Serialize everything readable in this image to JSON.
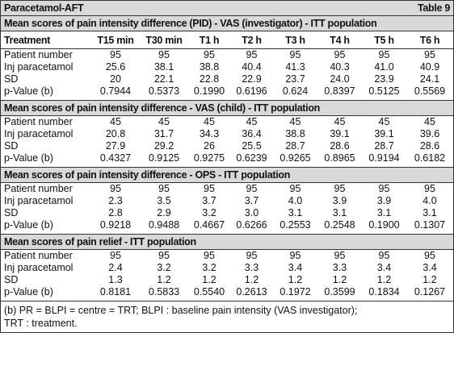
{
  "header": {
    "title": "Paracetamol-AFT",
    "table_label": "Table 9"
  },
  "columns": [
    "Treatment",
    "T15 min",
    "T30 min",
    "T1 h",
    "T2 h",
    "T3 h",
    "T4 h",
    "T5 h",
    "T6 h"
  ],
  "sections": [
    {
      "title": "Mean scores of pain intensity difference (PID) - VAS (investigator) - ITT population",
      "rows": [
        {
          "label": "Patient number",
          "values": [
            "95",
            "95",
            "95",
            "95",
            "95",
            "95",
            "95",
            "95"
          ]
        },
        {
          "label": "Inj paracetamol",
          "values": [
            "25.6",
            "38.1",
            "38.8",
            "40.4",
            "41.3",
            "40.3",
            "41.0",
            "40.9"
          ]
        },
        {
          "label": "SD",
          "values": [
            "20",
            "22.1",
            "22.8",
            "22.9",
            "23.7",
            "24.0",
            "23.9",
            "24.1"
          ]
        },
        {
          "label": "p-Value (b)",
          "values": [
            "0.7944",
            "0.5373",
            "0.1990",
            "0.6196",
            "0.624",
            "0.8397",
            "0.5125",
            "0.5569"
          ]
        }
      ]
    },
    {
      "title": "Mean scores of pain intensity difference - VAS (child) - ITT population",
      "rows": [
        {
          "label": "Patient number",
          "values": [
            "45",
            "45",
            "45",
            "45",
            "45",
            "45",
            "45",
            "45"
          ]
        },
        {
          "label": "Inj paracetamol",
          "values": [
            "20.8",
            "31.7",
            "34.3",
            "36.4",
            "38.8",
            "39.1",
            "39.1",
            "39.6"
          ]
        },
        {
          "label": "SD",
          "values": [
            "27.9",
            "29.2",
            "26",
            "25.5",
            "28.7",
            "28.6",
            "28.7",
            "28.6"
          ]
        },
        {
          "label": "p-Value (b)",
          "values": [
            "0.4327",
            "0.9125",
            "0.9275",
            "0.6239",
            "0.9265",
            "0.8965",
            "0.9194",
            "0.6182"
          ]
        }
      ]
    },
    {
      "title": "Mean scores of pain intensity difference - OPS - ITT population",
      "rows": [
        {
          "label": "Patient number",
          "values": [
            "95",
            "95",
            "95",
            "95",
            "95",
            "95",
            "95",
            "95"
          ]
        },
        {
          "label": "Inj paracetamol",
          "values": [
            "2.3",
            "3.5",
            "3.7",
            "3.7",
            "4.0",
            "3.9",
            "3.9",
            "4.0"
          ]
        },
        {
          "label": "SD",
          "values": [
            "2.8",
            "2.9",
            "3.2",
            "3.0",
            "3.1",
            "3.1",
            "3.1",
            "3.1"
          ]
        },
        {
          "label": "p-Value (b)",
          "values": [
            "0.9218",
            "0.9488",
            "0.4667",
            "0.6266",
            "0.2553",
            "0.2548",
            "0.1900",
            "0.1307"
          ]
        }
      ]
    },
    {
      "title": "Mean scores of pain relief - ITT population",
      "rows": [
        {
          "label": "Patient number",
          "values": [
            "95",
            "95",
            "95",
            "95",
            "95",
            "95",
            "95",
            "95"
          ]
        },
        {
          "label": "Inj paracetamol",
          "values": [
            "2.4",
            "3.2",
            "3.2",
            "3.3",
            "3.4",
            "3.3",
            "3.4",
            "3.4"
          ]
        },
        {
          "label": "SD",
          "values": [
            "1.3",
            "1.2",
            "1.2",
            "1.2",
            "1.2",
            "1.2",
            "1.2",
            "1.2"
          ]
        },
        {
          "label": "p-Value (b)",
          "values": [
            "0.8181",
            "0.5833",
            "0.5540",
            "0.2613",
            "0.1972",
            "0.3599",
            "0.1834",
            "0.1267"
          ]
        }
      ]
    }
  ],
  "footnote": [
    "(b) PR = BLPI = centre = TRT; BLPI : baseline pain intensity (VAS investigator);",
    "TRT : treatment."
  ]
}
